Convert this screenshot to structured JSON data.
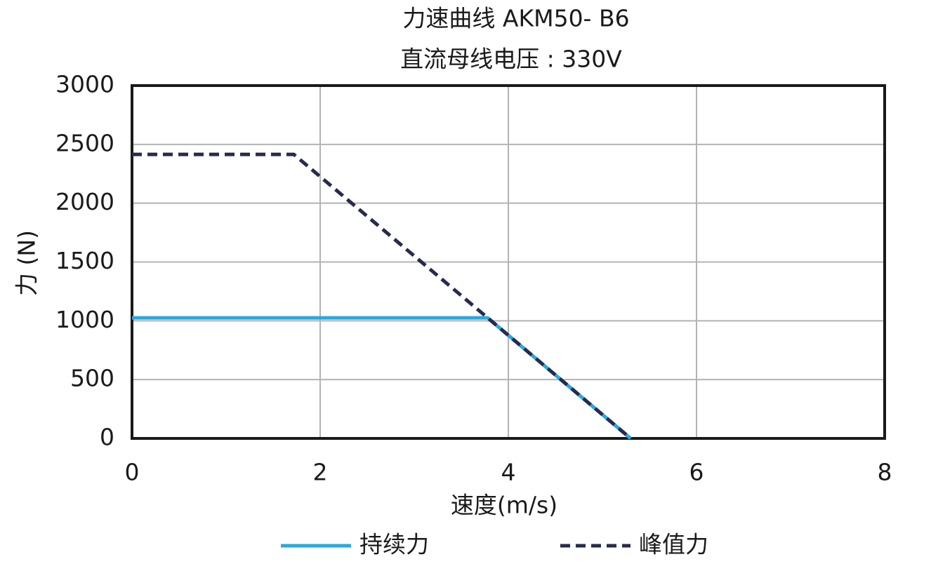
{
  "chart_data": {
    "type": "line",
    "title": "力速曲线 AKM50- B6",
    "subtitle": "直流母线电压 : 330V",
    "x_label": "速度(m/s)",
    "y_label": "力 (N)",
    "xlim": [
      0,
      8
    ],
    "xticks": [
      0,
      2,
      4,
      6,
      8
    ],
    "ylim": [
      0,
      3000
    ],
    "yticks": [
      0,
      500,
      1000,
      1500,
      2000,
      2500,
      3000
    ],
    "grid": true,
    "series": [
      {
        "name": "持续力",
        "color": "#29a8e0",
        "dashed": false,
        "x": [
          0,
          3.78,
          5.3
        ],
        "values": [
          1025,
          1025,
          0
        ]
      },
      {
        "name": "峰值力",
        "color": "#262b4e",
        "dashed": true,
        "x": [
          0,
          1.72,
          5.3
        ],
        "values": [
          2415,
          2415,
          0
        ]
      }
    ]
  }
}
